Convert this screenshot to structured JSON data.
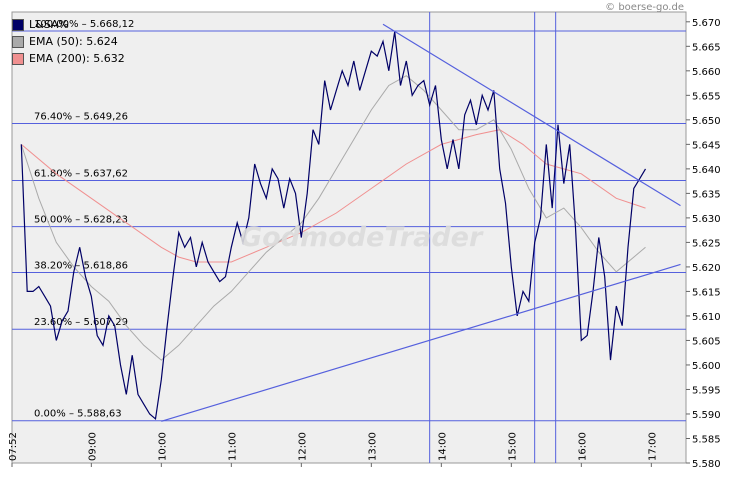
{
  "credit": "© boerse-go.de",
  "watermark": "GodmodeTrader",
  "legend": [
    {
      "label": "L&SA%",
      "color": "#000066"
    },
    {
      "label": "EMA (50): 5.624",
      "color": "#aaaaaa"
    },
    {
      "label": "EMA (200): 5.632",
      "color": "#f09090"
    }
  ],
  "chart_data": {
    "type": "line",
    "title": "",
    "y_ticks": [
      "5.580",
      "5.585",
      "5.590",
      "5.595",
      "5.600",
      "5.605",
      "5.610",
      "5.615",
      "5.620",
      "5.625",
      "5.630",
      "5.635",
      "5.640",
      "5.645",
      "5.650",
      "5.655",
      "5.660",
      "5.665",
      "5.670"
    ],
    "ylim": [
      5.58,
      5.672
    ],
    "x_ticks": [
      "07:52",
      "09:00",
      "10:00",
      "11:00",
      "12:00",
      "13:00",
      "14:00",
      "15:00",
      "16:00",
      "17:00"
    ],
    "fib_levels": [
      {
        "label": "100.00% – 5.668,12",
        "value": 5.66812
      },
      {
        "label": "76.40% – 5.649,26",
        "value": 5.64926
      },
      {
        "label": "61.80% – 5.637,62",
        "value": 5.63762
      },
      {
        "label": "50.00% – 5.628,23",
        "value": 5.62823
      },
      {
        "label": "38.20% – 5.618,86",
        "value": 5.61886
      },
      {
        "label": "23.60% – 5.607,29",
        "value": 5.60729
      },
      {
        "label": "0.00% – 5.588,63",
        "value": 5.58863
      }
    ],
    "vertical_markers": [
      "13:50",
      "15:20",
      "15:38"
    ],
    "trendlines": [
      {
        "from": [
          "10:00",
          5.5885
        ],
        "to": [
          "17:25",
          5.6205
        ]
      },
      {
        "from": [
          "13:10",
          5.6695
        ],
        "to": [
          "17:25",
          5.6325
        ]
      }
    ],
    "series": [
      {
        "name": "L&SA%",
        "color": "#000066",
        "points": [
          [
            "08:00",
            5.645
          ],
          [
            "08:05",
            5.615
          ],
          [
            "08:10",
            5.615
          ],
          [
            "08:15",
            5.616
          ],
          [
            "08:20",
            5.614
          ],
          [
            "08:25",
            5.612
          ],
          [
            "08:30",
            5.605
          ],
          [
            "08:35",
            5.609
          ],
          [
            "08:40",
            5.611
          ],
          [
            "08:45",
            5.619
          ],
          [
            "08:50",
            5.624
          ],
          [
            "08:55",
            5.618
          ],
          [
            "09:00",
            5.614
          ],
          [
            "09:05",
            5.606
          ],
          [
            "09:10",
            5.604
          ],
          [
            "09:15",
            5.61
          ],
          [
            "09:20",
            5.608
          ],
          [
            "09:25",
            5.6
          ],
          [
            "09:30",
            5.594
          ],
          [
            "09:35",
            5.602
          ],
          [
            "09:40",
            5.594
          ],
          [
            "09:45",
            5.592
          ],
          [
            "09:50",
            5.59
          ],
          [
            "09:55",
            5.589
          ],
          [
            "10:00",
            5.597
          ],
          [
            "10:05",
            5.608
          ],
          [
            "10:10",
            5.618
          ],
          [
            "10:15",
            5.627
          ],
          [
            "10:20",
            5.624
          ],
          [
            "10:25",
            5.626
          ],
          [
            "10:30",
            5.62
          ],
          [
            "10:35",
            5.625
          ],
          [
            "10:40",
            5.621
          ],
          [
            "10:45",
            5.619
          ],
          [
            "10:50",
            5.617
          ],
          [
            "10:55",
            5.618
          ],
          [
            "11:00",
            5.624
          ],
          [
            "11:05",
            5.629
          ],
          [
            "11:10",
            5.625
          ],
          [
            "11:15",
            5.63
          ],
          [
            "11:20",
            5.641
          ],
          [
            "11:25",
            5.637
          ],
          [
            "11:30",
            5.634
          ],
          [
            "11:35",
            5.64
          ],
          [
            "11:40",
            5.638
          ],
          [
            "11:45",
            5.632
          ],
          [
            "11:50",
            5.638
          ],
          [
            "11:55",
            5.635
          ],
          [
            "12:00",
            5.626
          ],
          [
            "12:05",
            5.635
          ],
          [
            "12:10",
            5.648
          ],
          [
            "12:15",
            5.645
          ],
          [
            "12:20",
            5.658
          ],
          [
            "12:25",
            5.652
          ],
          [
            "12:30",
            5.656
          ],
          [
            "12:35",
            5.66
          ],
          [
            "12:40",
            5.657
          ],
          [
            "12:45",
            5.662
          ],
          [
            "12:50",
            5.656
          ],
          [
            "12:55",
            5.66
          ],
          [
            "13:00",
            5.664
          ],
          [
            "13:05",
            5.663
          ],
          [
            "13:10",
            5.666
          ],
          [
            "13:15",
            5.66
          ],
          [
            "13:20",
            5.668
          ],
          [
            "13:25",
            5.657
          ],
          [
            "13:30",
            5.662
          ],
          [
            "13:35",
            5.655
          ],
          [
            "13:40",
            5.657
          ],
          [
            "13:45",
            5.658
          ],
          [
            "13:50",
            5.653
          ],
          [
            "13:55",
            5.657
          ],
          [
            "14:00",
            5.646
          ],
          [
            "14:05",
            5.64
          ],
          [
            "14:10",
            5.646
          ],
          [
            "14:15",
            5.64
          ],
          [
            "14:20",
            5.651
          ],
          [
            "14:25",
            5.654
          ],
          [
            "14:30",
            5.649
          ],
          [
            "14:35",
            5.655
          ],
          [
            "14:40",
            5.652
          ],
          [
            "14:45",
            5.656
          ],
          [
            "14:50",
            5.64
          ],
          [
            "14:55",
            5.633
          ],
          [
            "15:00",
            5.62
          ],
          [
            "15:05",
            5.61
          ],
          [
            "15:10",
            5.615
          ],
          [
            "15:15",
            5.613
          ],
          [
            "15:20",
            5.625
          ],
          [
            "15:25",
            5.63
          ],
          [
            "15:30",
            5.645
          ],
          [
            "15:35",
            5.632
          ],
          [
            "15:40",
            5.649
          ],
          [
            "15:45",
            5.637
          ],
          [
            "15:50",
            5.645
          ],
          [
            "15:55",
            5.628
          ],
          [
            "16:00",
            5.605
          ],
          [
            "16:05",
            5.606
          ],
          [
            "16:10",
            5.615
          ],
          [
            "16:15",
            5.626
          ],
          [
            "16:20",
            5.618
          ],
          [
            "16:25",
            5.601
          ],
          [
            "16:30",
            5.612
          ],
          [
            "16:35",
            5.608
          ],
          [
            "16:40",
            5.624
          ],
          [
            "16:45",
            5.636
          ],
          [
            "16:50",
            5.638
          ],
          [
            "16:55",
            5.64
          ]
        ]
      },
      {
        "name": "EMA (50): 5.624",
        "color": "#aaaaaa",
        "points": [
          [
            "08:00",
            5.645
          ],
          [
            "08:15",
            5.634
          ],
          [
            "08:30",
            5.625
          ],
          [
            "08:45",
            5.62
          ],
          [
            "09:00",
            5.616
          ],
          [
            "09:15",
            5.613
          ],
          [
            "09:30",
            5.608
          ],
          [
            "09:45",
            5.604
          ],
          [
            "10:00",
            5.601
          ],
          [
            "10:15",
            5.604
          ],
          [
            "10:30",
            5.608
          ],
          [
            "10:45",
            5.612
          ],
          [
            "11:00",
            5.615
          ],
          [
            "11:15",
            5.619
          ],
          [
            "11:30",
            5.623
          ],
          [
            "11:45",
            5.626
          ],
          [
            "12:00",
            5.629
          ],
          [
            "12:15",
            5.634
          ],
          [
            "12:30",
            5.64
          ],
          [
            "12:45",
            5.646
          ],
          [
            "13:00",
            5.652
          ],
          [
            "13:15",
            5.657
          ],
          [
            "13:30",
            5.659
          ],
          [
            "13:45",
            5.656
          ],
          [
            "14:00",
            5.652
          ],
          [
            "14:15",
            5.648
          ],
          [
            "14:30",
            5.648
          ],
          [
            "14:45",
            5.65
          ],
          [
            "15:00",
            5.644
          ],
          [
            "15:15",
            5.636
          ],
          [
            "15:30",
            5.63
          ],
          [
            "15:45",
            5.632
          ],
          [
            "16:00",
            5.628
          ],
          [
            "16:15",
            5.623
          ],
          [
            "16:30",
            5.619
          ],
          [
            "16:45",
            5.622
          ],
          [
            "16:55",
            5.624
          ]
        ]
      },
      {
        "name": "EMA (200): 5.632",
        "color": "#f09090",
        "points": [
          [
            "08:00",
            5.645
          ],
          [
            "08:30",
            5.639
          ],
          [
            "09:00",
            5.634
          ],
          [
            "09:30",
            5.629
          ],
          [
            "10:00",
            5.624
          ],
          [
            "10:15",
            5.622
          ],
          [
            "10:30",
            5.621
          ],
          [
            "11:00",
            5.621
          ],
          [
            "11:30",
            5.624
          ],
          [
            "12:00",
            5.627
          ],
          [
            "12:30",
            5.631
          ],
          [
            "13:00",
            5.636
          ],
          [
            "13:30",
            5.641
          ],
          [
            "14:00",
            5.645
          ],
          [
            "14:30",
            5.647
          ],
          [
            "14:50",
            5.648
          ],
          [
            "15:10",
            5.645
          ],
          [
            "15:30",
            5.641
          ],
          [
            "16:00",
            5.639
          ],
          [
            "16:30",
            5.634
          ],
          [
            "16:55",
            5.632
          ]
        ]
      }
    ]
  }
}
